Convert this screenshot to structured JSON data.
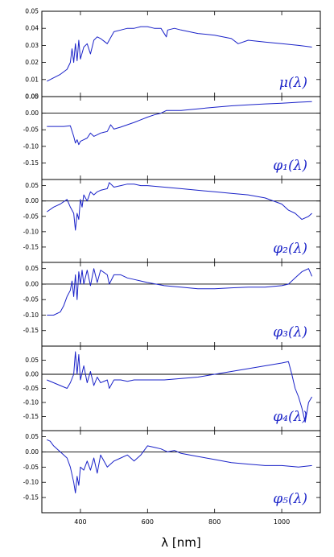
{
  "chart_data": {
    "type": "line",
    "xlabel": "λ [nm]",
    "xlim": [
      285,
      1115
    ],
    "xticks": [
      400,
      600,
      800,
      1000
    ],
    "xtick_labels": [
      "400",
      "600",
      "800",
      "1000"
    ],
    "line_color": "#1a22c8",
    "panels": [
      {
        "label": "μ(λ)",
        "ylim": [
          0.0,
          0.05
        ],
        "yticks": [
          0.0,
          0.01,
          0.02,
          0.03,
          0.04,
          0.05
        ],
        "ytick_labels": [
          "0.00",
          "0.01",
          "0.02",
          "0.03",
          "0.04",
          "0.05"
        ],
        "zero_line": false,
        "x": [
          300,
          320,
          340,
          360,
          370,
          375,
          380,
          385,
          390,
          395,
          400,
          410,
          420,
          430,
          440,
          450,
          460,
          480,
          500,
          520,
          540,
          560,
          580,
          600,
          620,
          640,
          656,
          660,
          680,
          700,
          750,
          800,
          850,
          870,
          900,
          950,
          1000,
          1050,
          1090
        ],
        "y": [
          0.009,
          0.011,
          0.013,
          0.016,
          0.02,
          0.028,
          0.02,
          0.031,
          0.021,
          0.033,
          0.022,
          0.029,
          0.031,
          0.025,
          0.033,
          0.035,
          0.034,
          0.031,
          0.038,
          0.039,
          0.04,
          0.04,
          0.041,
          0.041,
          0.04,
          0.04,
          0.035,
          0.039,
          0.04,
          0.039,
          0.037,
          0.036,
          0.034,
          0.031,
          0.033,
          0.032,
          0.031,
          0.03,
          0.029
        ]
      },
      {
        "label": "φ₁(λ)",
        "ylim": [
          -0.2,
          0.05
        ],
        "yticks": [
          0.05,
          0.0,
          -0.05,
          -0.1,
          -0.15
        ],
        "ytick_labels": [
          "0.05",
          "0.00",
          "-0.05",
          "-0.10",
          "-0.15"
        ],
        "zero_line": true,
        "x": [
          300,
          350,
          370,
          380,
          385,
          390,
          395,
          400,
          410,
          420,
          430,
          440,
          450,
          460,
          480,
          490,
          500,
          520,
          540,
          560,
          580,
          600,
          620,
          640,
          656,
          700,
          750,
          800,
          850,
          900,
          950,
          1000,
          1050,
          1090
        ],
        "y": [
          -0.04,
          -0.04,
          -0.038,
          -0.07,
          -0.09,
          -0.08,
          -0.095,
          -0.085,
          -0.08,
          -0.075,
          -0.06,
          -0.07,
          -0.065,
          -0.06,
          -0.055,
          -0.035,
          -0.048,
          -0.042,
          -0.035,
          -0.028,
          -0.02,
          -0.012,
          -0.005,
          0.0,
          0.008,
          0.008,
          0.013,
          0.018,
          0.022,
          0.025,
          0.028,
          0.03,
          0.033,
          0.035
        ]
      },
      {
        "label": "φ₂(λ)",
        "ylim": [
          -0.2,
          0.07
        ],
        "yticks": [
          0.05,
          0.0,
          -0.05,
          -0.1,
          -0.15
        ],
        "ytick_labels": [
          "0.05",
          "0.00",
          "-0.05",
          "-0.10",
          "-0.15"
        ],
        "zero_line": true,
        "x": [
          300,
          320,
          340,
          360,
          370,
          380,
          385,
          390,
          395,
          400,
          405,
          410,
          420,
          430,
          440,
          450,
          460,
          480,
          486,
          500,
          520,
          540,
          560,
          580,
          600,
          650,
          700,
          750,
          800,
          850,
          900,
          950,
          1000,
          1020,
          1040,
          1060,
          1080,
          1090
        ],
        "y": [
          -0.035,
          -0.02,
          -0.01,
          0.005,
          -0.02,
          -0.04,
          -0.095,
          -0.04,
          -0.06,
          0.005,
          -0.02,
          0.02,
          0.0,
          0.03,
          0.02,
          0.03,
          0.035,
          0.04,
          0.06,
          0.045,
          0.05,
          0.055,
          0.055,
          0.05,
          0.05,
          0.045,
          0.04,
          0.035,
          0.03,
          0.025,
          0.02,
          0.01,
          -0.01,
          -0.03,
          -0.04,
          -0.06,
          -0.05,
          -0.04
        ]
      },
      {
        "label": "φ₃(λ)",
        "ylim": [
          -0.2,
          0.07
        ],
        "yticks": [
          0.05,
          0.0,
          -0.05,
          -0.1,
          -0.15
        ],
        "ytick_labels": [
          "0.05",
          "0.00",
          "-0.05",
          "-0.10",
          "-0.15"
        ],
        "zero_line": true,
        "x": [
          300,
          320,
          340,
          350,
          360,
          370,
          375,
          380,
          385,
          390,
          395,
          400,
          405,
          410,
          420,
          430,
          440,
          450,
          460,
          480,
          486,
          500,
          520,
          540,
          560,
          580,
          600,
          650,
          700,
          750,
          800,
          850,
          900,
          950,
          1000,
          1020,
          1040,
          1060,
          1080,
          1090
        ],
        "y": [
          -0.1,
          -0.1,
          -0.09,
          -0.07,
          -0.04,
          -0.02,
          0.01,
          -0.04,
          0.03,
          -0.05,
          0.04,
          0.0,
          0.045,
          0.0,
          0.045,
          -0.005,
          0.05,
          0.005,
          0.045,
          0.03,
          0.0,
          0.03,
          0.03,
          0.02,
          0.015,
          0.01,
          0.005,
          -0.005,
          -0.01,
          -0.015,
          -0.015,
          -0.012,
          -0.01,
          -0.01,
          -0.005,
          0.0,
          0.02,
          0.04,
          0.05,
          0.025
        ]
      },
      {
        "label": "φ₄(λ)",
        "ylim": [
          -0.2,
          0.1
        ],
        "yticks": [
          0.05,
          0.0,
          -0.05,
          -0.1,
          -0.15
        ],
        "ytick_labels": [
          "0.05",
          "0.00",
          "-0.05",
          "-0.10",
          "-0.15"
        ],
        "zero_line": true,
        "x": [
          300,
          320,
          340,
          360,
          370,
          380,
          385,
          390,
          395,
          400,
          410,
          420,
          430,
          440,
          450,
          460,
          480,
          486,
          500,
          520,
          540,
          560,
          580,
          600,
          650,
          700,
          750,
          800,
          850,
          900,
          950,
          1000,
          1020,
          1030,
          1040,
          1050,
          1060,
          1070,
          1080,
          1090
        ],
        "y": [
          -0.02,
          -0.03,
          -0.04,
          -0.05,
          -0.03,
          0.0,
          0.08,
          0.0,
          0.07,
          -0.02,
          0.03,
          -0.03,
          0.01,
          -0.04,
          -0.01,
          -0.03,
          -0.02,
          -0.05,
          -0.02,
          -0.02,
          -0.025,
          -0.02,
          -0.02,
          -0.02,
          -0.02,
          -0.015,
          -0.01,
          0.0,
          0.01,
          0.02,
          0.03,
          0.04,
          0.045,
          0.0,
          -0.05,
          -0.08,
          -0.12,
          -0.17,
          -0.1,
          -0.08
        ]
      },
      {
        "label": "φ₅(λ)",
        "ylim": [
          -0.2,
          0.07
        ],
        "yticks": [
          0.05,
          0.0,
          -0.05,
          -0.1,
          -0.15
        ],
        "ytick_labels": [
          "0.05",
          "0.00",
          "-0.05",
          "-0.10",
          "-0.15"
        ],
        "zero_line": true,
        "x": [
          300,
          310,
          320,
          340,
          360,
          370,
          380,
          385,
          390,
          395,
          400,
          410,
          420,
          430,
          440,
          450,
          460,
          480,
          500,
          520,
          540,
          560,
          580,
          600,
          620,
          640,
          660,
          680,
          700,
          750,
          800,
          850,
          900,
          950,
          1000,
          1050,
          1090
        ],
        "y": [
          0.04,
          0.035,
          0.02,
          0.0,
          -0.02,
          -0.05,
          -0.1,
          -0.135,
          -0.08,
          -0.11,
          -0.05,
          -0.06,
          -0.03,
          -0.06,
          -0.02,
          -0.07,
          -0.01,
          -0.05,
          -0.03,
          -0.02,
          -0.01,
          -0.03,
          -0.01,
          0.02,
          0.015,
          0.01,
          0.0,
          0.005,
          -0.005,
          -0.015,
          -0.025,
          -0.035,
          -0.04,
          -0.045,
          -0.045,
          -0.05,
          -0.045
        ]
      }
    ]
  }
}
